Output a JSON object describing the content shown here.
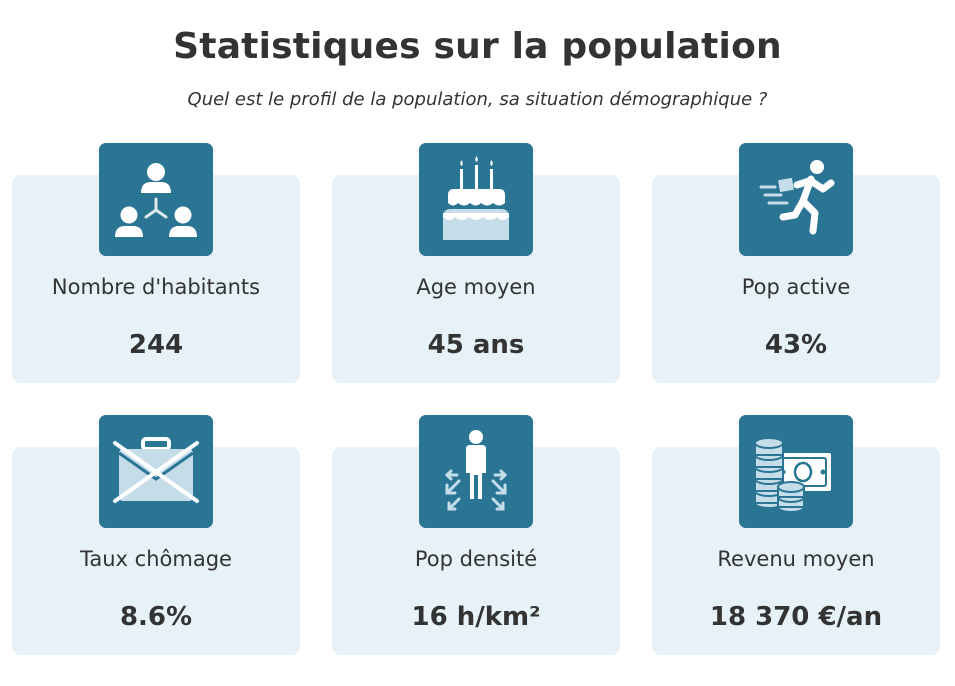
{
  "header": {
    "title": "Statistiques sur la population",
    "subtitle": "Quel est le profil de la population, sa situation démographique ?"
  },
  "stats": [
    {
      "label": "Nombre d'habitants",
      "value": "244",
      "icon": "people-network-icon"
    },
    {
      "label": "Age moyen",
      "value": "45 ans",
      "icon": "birthday-cake-icon"
    },
    {
      "label": "Pop active",
      "value": "43%",
      "icon": "running-worker-icon"
    },
    {
      "label": "Taux chômage",
      "value": "8.6%",
      "icon": "crossed-briefcase-icon"
    },
    {
      "label": "Pop densité",
      "value": "16 h/km²",
      "icon": "person-arrows-icon"
    },
    {
      "label": "Revenu moyen",
      "value": "18 370 €/an",
      "icon": "money-coins-icon"
    }
  ],
  "colors": {
    "icon_background": "#2a7593",
    "card_background": "#e6f1f8",
    "text": "#333333"
  }
}
